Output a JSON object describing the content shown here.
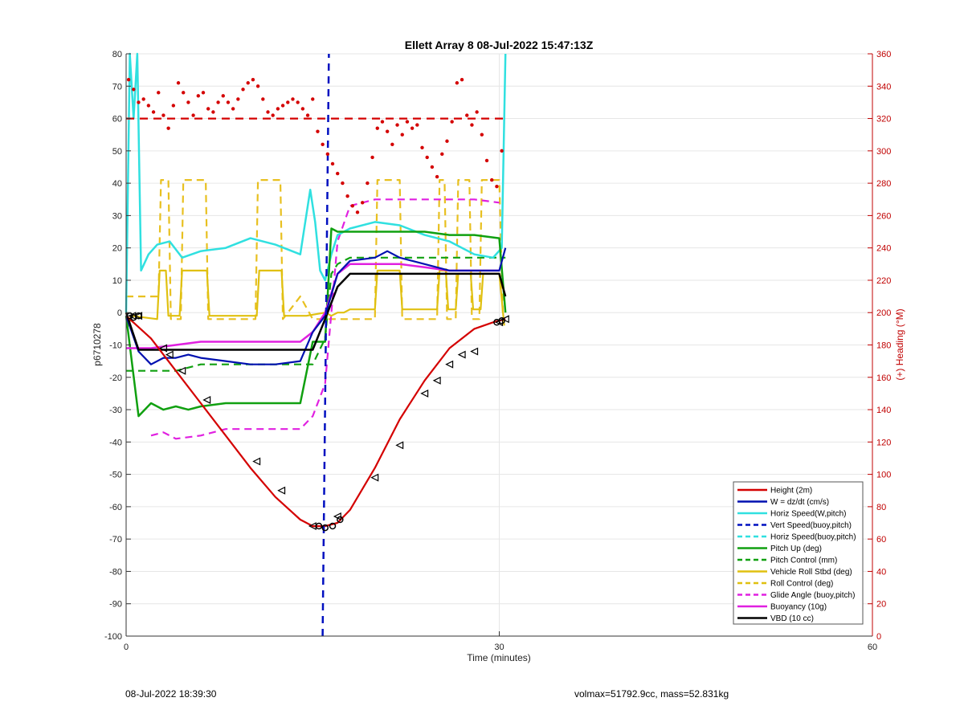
{
  "chart_data": {
    "type": "line",
    "title": "Ellett Array 8 08-Jul-2022 15:47:13Z",
    "xlabel": "Time (minutes)",
    "ylabel": "p6710278",
    "ylabel_right": "(+) Heading (°M)",
    "xlim": [
      0,
      60
    ],
    "ylim": [
      -100,
      80
    ],
    "ylim_right": [
      0,
      360
    ],
    "xticks": [
      "0",
      "30",
      "60"
    ],
    "yticks": [
      "80",
      "70",
      "60",
      "50",
      "40",
      "30",
      "20",
      "10",
      "0",
      "-10",
      "-20",
      "-30",
      "-40",
      "-50",
      "-60",
      "-70",
      "-80",
      "-90",
      "-100"
    ],
    "yticks_right": [
      "360",
      "340",
      "320",
      "300",
      "280",
      "260",
      "240",
      "220",
      "200",
      "180",
      "160",
      "140",
      "120",
      "100",
      "80",
      "60",
      "40",
      "20",
      "0"
    ],
    "grid": true,
    "legend_position": "bottom-right",
    "legend": [
      {
        "label": "Height (2m)",
        "color": "#d40000",
        "dash": false
      },
      {
        "label": "W = dz/dt (cm/s)",
        "color": "#0010b0",
        "dash": false
      },
      {
        "label": "Horiz Speed(W,pitch)",
        "color": "#30e0e0",
        "dash": false
      },
      {
        "label": "Vert Speed(buoy,pitch)",
        "color": "#0010c0",
        "dash": true
      },
      {
        "label": "Horiz Speed(buoy,pitch)",
        "color": "#30e0e0",
        "dash": true
      },
      {
        "label": "Pitch Up (deg)",
        "color": "#10a010",
        "dash": false
      },
      {
        "label": "Pitch Control (mm)",
        "color": "#10a010",
        "dash": true
      },
      {
        "label": "Vehicle Roll Stbd (deg)",
        "color": "#e0c010",
        "dash": false
      },
      {
        "label": "Roll Control (deg)",
        "color": "#e0c010",
        "dash": true
      },
      {
        "label": "Glide Angle (buoy,pitch)",
        "color": "#e020e0",
        "dash": true
      },
      {
        "label": "Buoyancy (10g)",
        "color": "#e020e0",
        "dash": false
      },
      {
        "label": "VBD (10 cc)",
        "color": "#000000",
        "dash": false
      }
    ],
    "series": [
      {
        "key": "height",
        "x": [
          0,
          2,
          4,
          6,
          8,
          10,
          12,
          14,
          15,
          16,
          17,
          18,
          20,
          22,
          24,
          26,
          28,
          29.5,
          30.5
        ],
        "y": [
          -1,
          -8,
          -18,
          -28,
          -38,
          -48,
          -57,
          -64,
          -66,
          -66,
          -65,
          -61,
          -48,
          -33,
          -21,
          -11,
          -5,
          -3,
          -2
        ]
      },
      {
        "key": "w",
        "x": [
          0,
          1,
          2,
          3,
          4,
          5,
          6,
          8,
          10,
          12,
          14,
          15,
          16,
          17,
          18,
          20,
          21,
          22,
          24,
          26,
          28,
          30,
          30.5
        ],
        "y": [
          -1,
          -12,
          -16,
          -14,
          -14,
          -13,
          -14,
          -15,
          -16,
          -16,
          -15,
          -6,
          -1,
          12,
          16,
          17,
          19,
          17,
          15,
          13,
          13,
          13,
          20
        ]
      },
      {
        "key": "horiz_w",
        "x": [
          0,
          0.3,
          0.6,
          0.9,
          1.2,
          1.8,
          2.5,
          3.5,
          4.5,
          6,
          8,
          10,
          12,
          14,
          14.8,
          15.2,
          15.6,
          16,
          16.5,
          17,
          18,
          20,
          22,
          24,
          26,
          28,
          29.5,
          30.2,
          30.5
        ],
        "y": [
          0,
          80,
          60,
          80,
          13,
          18,
          21,
          22,
          17,
          19,
          20,
          23,
          21,
          18,
          38,
          28,
          13,
          10,
          18,
          24,
          26,
          28,
          27,
          24,
          22,
          18,
          17,
          20,
          80
        ]
      },
      {
        "key": "pitch_up",
        "x": [
          0,
          1,
          2,
          3,
          4,
          5,
          6,
          8,
          10,
          12,
          14,
          15,
          16,
          16.5,
          17,
          18,
          20,
          22,
          24,
          26,
          28,
          30,
          30.5
        ],
        "y": [
          -1,
          -32,
          -28,
          -30,
          -29,
          -30,
          -29,
          -28,
          -28,
          -28,
          -28,
          -9,
          -9,
          26,
          25,
          25,
          25,
          25,
          25,
          24,
          24,
          23,
          0
        ]
      },
      {
        "key": "pitch_control",
        "x": [
          0,
          1,
          4,
          6,
          8,
          10,
          12,
          14,
          15,
          16,
          16.5,
          17,
          18,
          20,
          22,
          24,
          26,
          28,
          30,
          30.5
        ],
        "y": [
          -18,
          -18,
          -18,
          -16,
          -16,
          -16,
          -16,
          -16,
          -16,
          -8,
          12,
          15,
          17,
          17,
          17,
          17,
          17,
          17,
          17,
          17
        ]
      },
      {
        "key": "roll",
        "x": [
          0,
          0.2,
          0.4,
          2.5,
          2.7,
          3.2,
          3.4,
          4.3,
          4.5,
          6.5,
          6.7,
          10.5,
          10.7,
          12.5,
          12.7,
          14.5,
          16,
          16.5,
          17,
          17.5,
          18,
          20,
          20.2,
          22,
          22.2,
          25,
          25.2,
          25.7,
          25.9,
          26.5,
          26.7,
          27.7,
          27.9,
          28.5,
          28.7,
          30,
          30.4
        ],
        "y": [
          0,
          -4,
          -1,
          -2,
          13,
          13,
          -1,
          -1,
          13,
          13,
          -1,
          -1,
          13,
          13,
          -1,
          -1,
          0,
          -1,
          0,
          0,
          1,
          1,
          13,
          13,
          1,
          1,
          13,
          13,
          1,
          1,
          12,
          12,
          1,
          1,
          12,
          12,
          -4
        ]
      },
      {
        "key": "roll_control",
        "x": [
          0,
          0.3,
          2,
          2.6,
          2.8,
          3.4,
          3.6,
          4.4,
          4.6,
          6.4,
          6.6,
          10.4,
          10.6,
          12.4,
          12.6,
          14,
          15,
          16.5,
          17,
          18,
          20,
          20.2,
          22,
          22.2,
          25,
          25.2,
          25.6,
          25.8,
          26.5,
          26.7,
          27.6,
          27.8,
          28.4,
          28.6,
          30,
          30.3
        ],
        "y": [
          5,
          5,
          5,
          5,
          41,
          41,
          -2,
          -2,
          41,
          41,
          -2,
          -2,
          41,
          41,
          -2,
          5,
          -2,
          -2,
          -2,
          -2,
          -2,
          41,
          41,
          -2,
          -2,
          41,
          41,
          -2,
          -2,
          41,
          41,
          -2,
          -2,
          41,
          41,
          -2
        ]
      },
      {
        "key": "glide_angle",
        "x": [
          2,
          3,
          4,
          6,
          8,
          10,
          12,
          14,
          15,
          16,
          16.5,
          17,
          18,
          20,
          22,
          24,
          26,
          28,
          30
        ],
        "y": [
          -38,
          -37,
          -39,
          -38,
          -36,
          -36,
          -36,
          -36,
          -32,
          -22,
          0,
          22,
          33,
          35,
          35,
          35,
          35,
          35,
          34
        ]
      },
      {
        "key": "buoyancy",
        "x": [
          0,
          1,
          2,
          4,
          6,
          8,
          10,
          12,
          14,
          15,
          16,
          17,
          18,
          20,
          22,
          24,
          26,
          28,
          30
        ],
        "y": [
          -11,
          -11,
          -11,
          -10,
          -9,
          -9,
          -9,
          -9,
          -9,
          -6,
          0,
          12,
          15,
          15,
          15,
          14,
          13,
          13,
          13
        ]
      },
      {
        "key": "vbd",
        "x": [
          0,
          1,
          6,
          8,
          10,
          12,
          14,
          15,
          16,
          17,
          18,
          20,
          22,
          24,
          26,
          28,
          30,
          30.5
        ],
        "y": [
          0,
          -11.5,
          -11.5,
          -11.5,
          -11.5,
          -11.5,
          -11.5,
          -11.5,
          -2,
          8,
          12,
          12,
          12,
          12,
          12,
          12,
          12,
          5
        ]
      },
      {
        "key": "vert_speed",
        "x": [
          15.8,
          16.3
        ],
        "y": [
          -100,
          80
        ]
      },
      {
        "key": "heading_ref",
        "x": [
          0,
          30.5
        ],
        "y_right": [
          320,
          320
        ]
      },
      {
        "key": "heading",
        "x": [
          0.2,
          0.6,
          1,
          1.4,
          1.8,
          2.2,
          2.6,
          3,
          3.4,
          3.8,
          4.2,
          4.6,
          5,
          5.4,
          5.8,
          6.2,
          6.6,
          7,
          7.4,
          7.8,
          8.2,
          8.6,
          9,
          9.4,
          9.8,
          10.2,
          10.6,
          11,
          11.4,
          11.8,
          12.2,
          12.6,
          13,
          13.4,
          13.8,
          14.2,
          14.6,
          15,
          15.4,
          15.8,
          16.2,
          16.6,
          17,
          17.4,
          17.8,
          18.2,
          18.6,
          19,
          19.4,
          19.8,
          20.2,
          20.6,
          21,
          21.4,
          21.8,
          22.2,
          22.6,
          23,
          23.4,
          23.8,
          24.2,
          24.6,
          25,
          25.4,
          25.8,
          26.2,
          26.6,
          27,
          27.4,
          27.8,
          28.2,
          28.6,
          29,
          29.4,
          29.8,
          30.2
        ],
        "y_right": [
          344,
          338,
          330,
          332,
          328,
          324,
          336,
          322,
          314,
          328,
          342,
          336,
          330,
          322,
          334,
          336,
          326,
          324,
          330,
          334,
          330,
          326,
          332,
          338,
          342,
          344,
          340,
          332,
          324,
          322,
          326,
          328,
          330,
          332,
          330,
          326,
          322,
          332,
          312,
          304,
          298,
          292,
          286,
          280,
          272,
          266,
          262,
          268,
          280,
          296,
          314,
          318,
          312,
          304,
          316,
          310,
          318,
          314,
          316,
          302,
          296,
          290,
          284,
          298,
          306,
          318,
          342,
          344,
          322,
          316,
          324,
          310,
          294,
          282,
          278,
          300
        ]
      },
      {
        "key": "markers",
        "x": [
          0.5,
          1,
          3,
          3.5,
          4.5,
          6.5,
          10.5,
          12.5,
          15,
          17,
          20,
          22,
          24,
          25,
          26,
          27,
          28,
          30,
          30.5
        ],
        "y": [
          -1,
          -1,
          -11,
          -13,
          -18,
          -27,
          -46,
          -55,
          -66,
          -63,
          -51,
          -41,
          -25,
          -21,
          -16,
          -13,
          -12,
          -3,
          -2
        ]
      }
    ]
  },
  "footer": {
    "date": "08-Jul-2022 18:39:30",
    "info": "volmax=51792.9cc, mass=52.831kg"
  }
}
